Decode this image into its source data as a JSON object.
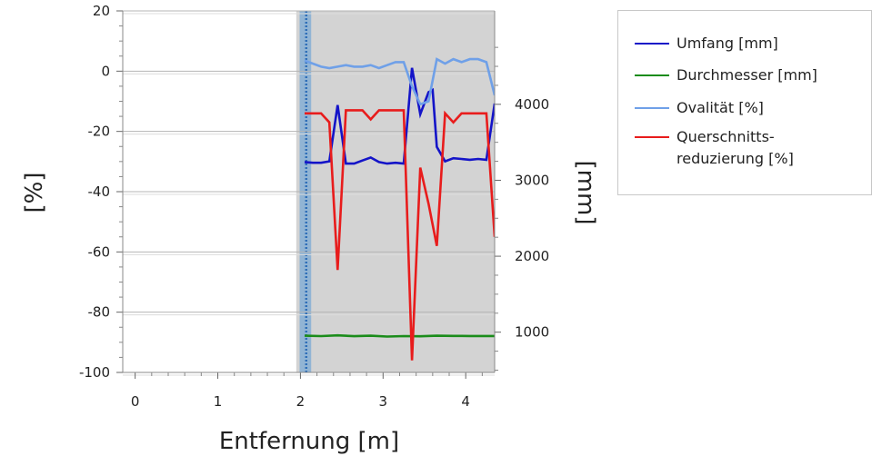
{
  "chart_data": {
    "type": "line",
    "xlabel": "Entfernung [m]",
    "ylabel_left": "[%]",
    "ylabel_right": "[mm]",
    "xlim": [
      -0.15,
      4.35
    ],
    "ylim_left": [
      -100,
      20
    ],
    "ylim_right": [
      470,
      5230
    ],
    "x_ticks": [
      0,
      1,
      2,
      3,
      4
    ],
    "y_ticks_left": [
      20,
      0,
      -20,
      -40,
      -60,
      -80,
      -100
    ],
    "y_ticks_right": [
      4000,
      3000,
      2000,
      1000
    ],
    "grid": "horizontal",
    "legend_position": "right",
    "shaded_region": {
      "x_from": 1.95,
      "x_to": 4.35,
      "color": "#d3d3d3"
    },
    "marker_line": {
      "x": 2.07,
      "color": "#5b9bd5",
      "band_from": 1.99,
      "band_to": 2.13
    },
    "series": [
      {
        "name": "Umfang [mm]",
        "axis": "right",
        "color": "#1414c8",
        "x": [
          2.05,
          2.15,
          2.25,
          2.35,
          2.45,
          2.55,
          2.65,
          2.75,
          2.85,
          2.95,
          3.05,
          3.15,
          3.25,
          3.35,
          3.45,
          3.55,
          3.6,
          3.65,
          3.75,
          3.85,
          3.95,
          4.05,
          4.15,
          4.25,
          4.35
        ],
        "values": [
          3240,
          3230,
          3230,
          3250,
          3990,
          3220,
          3220,
          3260,
          3300,
          3240,
          3220,
          3230,
          3220,
          4480,
          3870,
          4160,
          4190,
          3440,
          3250,
          3290,
          3280,
          3270,
          3280,
          3270,
          4010
        ]
      },
      {
        "name": "Durchmesser [mm]",
        "axis": "right",
        "color": "#1a8c1a",
        "x": [
          2.05,
          2.25,
          2.45,
          2.65,
          2.85,
          3.05,
          3.25,
          3.45,
          3.65,
          3.85,
          4.05,
          4.25,
          4.35
        ],
        "values": [
          953,
          948,
          958,
          947,
          953,
          943,
          948,
          946,
          953,
          951,
          950,
          949,
          950
        ]
      },
      {
        "name": "Ovalität [%]",
        "axis": "left",
        "color": "#6fa0e8",
        "x": [
          2.05,
          2.15,
          2.25,
          2.35,
          2.45,
          2.55,
          2.65,
          2.75,
          2.85,
          2.95,
          3.05,
          3.15,
          3.25,
          3.35,
          3.45,
          3.55,
          3.65,
          3.75,
          3.85,
          3.95,
          4.05,
          4.15,
          4.25,
          4.35
        ],
        "values": [
          3.5,
          2.5,
          1.5,
          1.0,
          1.5,
          2.0,
          1.5,
          1.5,
          2.0,
          1.0,
          2.0,
          3.0,
          3.0,
          -5.0,
          -11.0,
          -10.0,
          4.0,
          2.5,
          4.0,
          3.0,
          4.0,
          4.0,
          3.0,
          -8.0
        ]
      },
      {
        "name": "Querschnitts-\nreduzierung [%]",
        "axis": "left",
        "color": "#e81c1c",
        "x": [
          2.05,
          2.15,
          2.25,
          2.35,
          2.45,
          2.55,
          2.65,
          2.75,
          2.85,
          2.95,
          3.05,
          3.15,
          3.25,
          3.35,
          3.45,
          3.55,
          3.65,
          3.75,
          3.85,
          3.95,
          4.05,
          4.15,
          4.25,
          4.35
        ],
        "values": [
          -14,
          -14,
          -14,
          -17,
          -66,
          -13,
          -13,
          -13,
          -16,
          -13,
          -13,
          -13,
          -13,
          -96,
          -32,
          -44,
          -58,
          -14,
          -17,
          -14,
          -14,
          -14,
          -14,
          -55
        ]
      }
    ]
  }
}
